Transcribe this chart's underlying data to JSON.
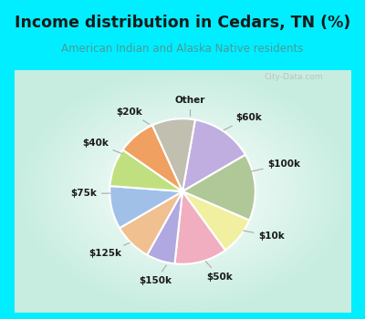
{
  "title": "Income distribution in Cedars, TN (%)",
  "subtitle": "American Indian and Alaska Native residents",
  "title_color": "#1a1a1a",
  "subtitle_color": "#4a9a9a",
  "bg_cyan": "#00eeff",
  "chart_bg": "#e0f5ee",
  "watermark": "City-Data.com",
  "labels": [
    "$60k",
    "$100k",
    "$10k",
    "$50k",
    "$150k",
    "$125k",
    "$75k",
    "$40k",
    "$20k",
    "Other"
  ],
  "values": [
    13,
    14,
    8,
    11,
    6,
    8,
    9,
    8,
    8,
    9
  ],
  "colors": [
    "#c0aee0",
    "#b0c898",
    "#f0f0a0",
    "#f0aec0",
    "#b0a8e0",
    "#f0c090",
    "#a0c0e8",
    "#c0e080",
    "#f0a060",
    "#c0bfb0"
  ],
  "figsize": [
    4.0,
    3.5
  ],
  "dpi": 100
}
